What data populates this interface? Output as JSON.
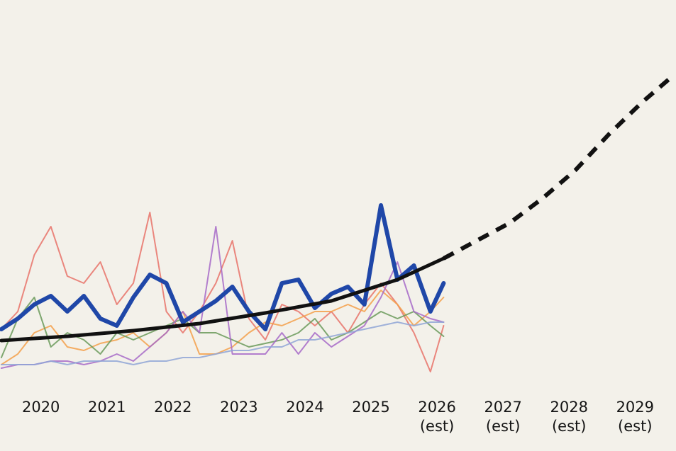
{
  "chart_data": {
    "type": "line",
    "xlim": [
      2019.38,
      2029.62
    ],
    "ylim": [
      0,
      637
    ],
    "xticks": [
      2020,
      2021,
      2022,
      2023,
      2024,
      2025,
      2026,
      2027,
      2028,
      2029
    ],
    "estimate_from": 2026,
    "estimate_label": "(est)",
    "x": [
      2019.4,
      2019.65,
      2019.9,
      2020.15,
      2020.4,
      2020.65,
      2020.9,
      2021.15,
      2021.4,
      2021.65,
      2021.9,
      2022.15,
      2022.4,
      2022.65,
      2022.9,
      2023.15,
      2023.4,
      2023.65,
      2023.9,
      2024.15,
      2024.4,
      2024.65,
      2024.9,
      2025.15,
      2025.4,
      2025.65,
      2025.9,
      2026.1
    ],
    "series": [
      {
        "color": "#e8736a",
        "values": [
          172,
          197,
          277,
          317,
          247,
          237,
          267,
          207,
          237,
          337,
          197,
          167,
          197,
          237,
          297,
          187,
          157,
          207,
          197,
          177,
          197,
          167,
          207,
          237,
          207,
          167,
          112,
          177
        ]
      },
      {
        "color": "#f3a04a",
        "values": [
          122,
          137,
          167,
          177,
          147,
          142,
          152,
          157,
          167,
          147,
          167,
          197,
          137,
          137,
          147,
          167,
          182,
          177,
          187,
          197,
          197,
          207,
          197,
          227,
          207,
          177,
          197,
          217
        ]
      },
      {
        "color": "#6a9a5a",
        "values": [
          132,
          187,
          217,
          147,
          167,
          157,
          137,
          167,
          157,
          167,
          177,
          187,
          167,
          167,
          157,
          147,
          152,
          157,
          167,
          187,
          157,
          167,
          182,
          197,
          187,
          197,
          177,
          162
        ]
      },
      {
        "color": "#a66ac8",
        "values": [
          117,
          122,
          122,
          127,
          127,
          122,
          127,
          137,
          127,
          147,
          167,
          197,
          167,
          317,
          137,
          137,
          137,
          167,
          137,
          167,
          147,
          162,
          177,
          217,
          267,
          197,
          187,
          182
        ]
      },
      {
        "color": "#8fa6d6",
        "values": [
          122,
          122,
          122,
          127,
          122,
          127,
          127,
          127,
          122,
          127,
          127,
          132,
          132,
          137,
          142,
          142,
          147,
          147,
          157,
          157,
          162,
          167,
          172,
          177,
          182,
          177,
          182,
          182
        ]
      },
      {
        "color": "#1f47a8",
        "values": [
          172,
          187,
          207,
          219,
          197,
          219,
          187,
          177,
          217,
          249,
          237,
          182,
          197,
          212,
          232,
          197,
          172,
          237,
          242,
          202,
          222,
          232,
          207,
          347,
          242,
          262,
          197,
          237
        ]
      },
      {
        "color": "#111111",
        "x": [
          2019.4,
          2020.4,
          2021.4,
          2022.4,
          2023.4,
          2024.4,
          2025.4,
          2026.1
        ],
        "values": [
          156,
          162,
          170,
          180,
          195,
          212,
          242,
          272
        ]
      },
      {
        "color": "#111111",
        "dashed": true,
        "x": [
          2026.1,
          2026.6,
          2027.1,
          2027.6,
          2028.1,
          2028.6,
          2029.1,
          2029.6
        ],
        "values": [
          272,
          297,
          322,
          357,
          397,
          447,
          492,
          532
        ]
      }
    ]
  }
}
